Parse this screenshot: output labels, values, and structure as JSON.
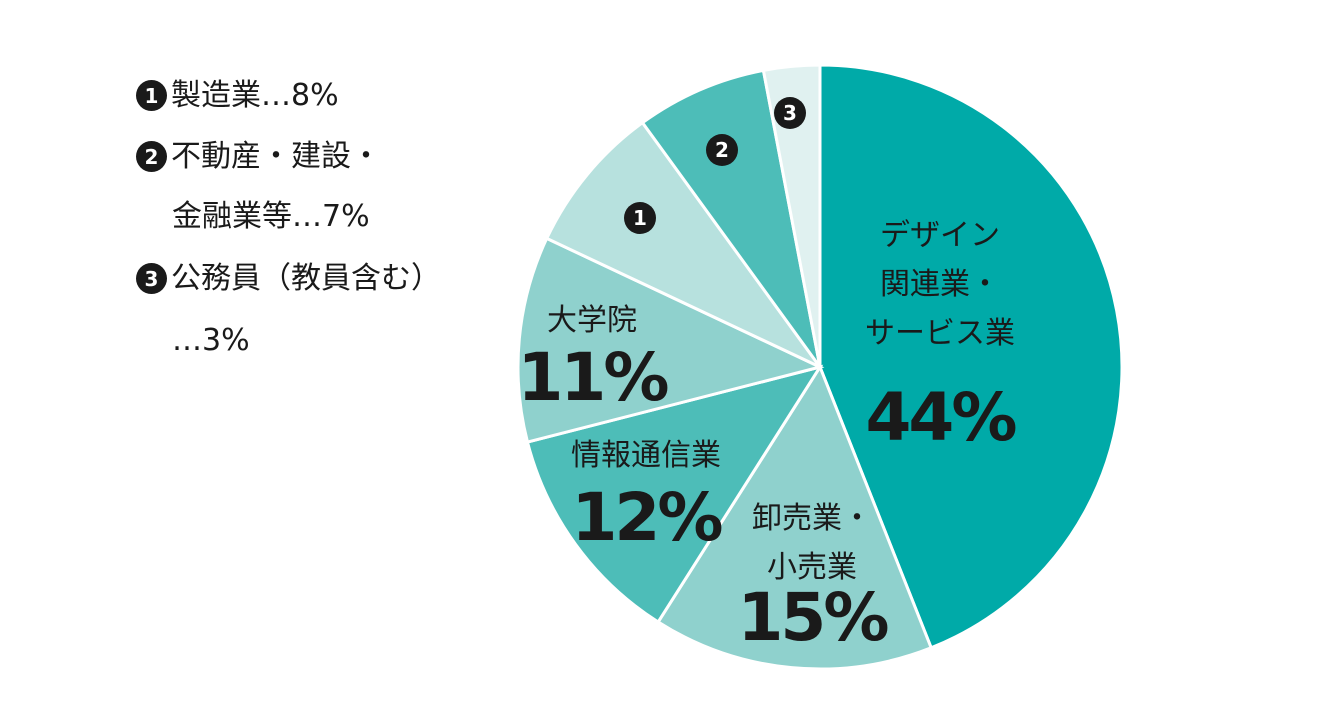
{
  "legend": {
    "items": [
      {
        "num": "1",
        "text": "製造業…8%"
      },
      {
        "num": "2",
        "text": "不動産・建設・",
        "text2": "金融業等…7%"
      },
      {
        "num": "3",
        "text": "公務員（教員含む）",
        "text2": "…3%"
      }
    ]
  },
  "chart_data": {
    "type": "pie",
    "title": "",
    "slices": [
      {
        "label": "デザイン関連業・サービス業",
        "label_lines": [
          "デザイン",
          "関連業・",
          "サービス業"
        ],
        "value": 44,
        "value_label": "44%",
        "color": "#00aaa8"
      },
      {
        "label": "卸売業・小売業",
        "label_lines": [
          "卸売業・",
          "小売業"
        ],
        "value": 15,
        "value_label": "15%",
        "color": "#8fd1cd"
      },
      {
        "label": "情報通信業",
        "label_lines": [
          "情報通信業"
        ],
        "value": 12,
        "value_label": "12%",
        "color": "#4dbdb8"
      },
      {
        "label": "大学院",
        "label_lines": [
          "大学院"
        ],
        "value": 11,
        "value_label": "11%",
        "color": "#8fd1cd"
      },
      {
        "label": "製造業",
        "marker": "1",
        "value": 8,
        "color": "#b7e1de"
      },
      {
        "label": "不動産・建設・金融業等",
        "marker": "2",
        "value": 7,
        "color": "#4dbdb8"
      },
      {
        "label": "公務員（教員含む）",
        "marker": "3",
        "value": 3,
        "color": "#e0f1f0"
      }
    ]
  }
}
